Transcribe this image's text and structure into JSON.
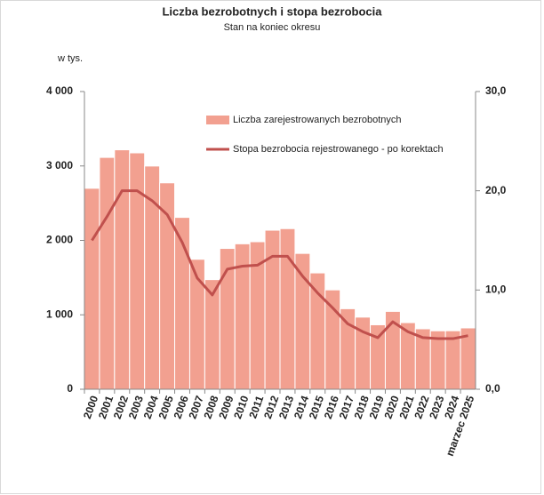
{
  "chart_data": {
    "type": "bar-line",
    "title": "Liczba bezrobotnych i stopa bezrobocia",
    "subtitle": "Stan na koniec okresu",
    "y_axis_label": "w tys.",
    "categories": [
      "2000",
      "2001",
      "2002",
      "2003",
      "2004",
      "2005",
      "2006",
      "2007",
      "2008",
      "2009",
      "2010",
      "2011",
      "2012",
      "2013",
      "2014",
      "2015",
      "2016",
      "2017",
      "2018",
      "2019",
      "2020",
      "2021",
      "2022",
      "2023",
      "2024",
      "marzec 2025"
    ],
    "series": [
      {
        "name": "Liczba zarejestrowanych bezrobotnych",
        "type": "bar",
        "color": "#f2a090",
        "values": [
          2700,
          3115,
          3217,
          3176,
          2999,
          2773,
          2309,
          1746,
          1473,
          1892,
          1954,
          1982,
          2137,
          2158,
          1825,
          1563,
          1335,
          1082,
          969,
          866,
          1046,
          895,
          812,
          785,
          786,
          824
        ]
      },
      {
        "name": "Stopa bezrobocia rejestrowanego - po korektach",
        "type": "line",
        "axis": "y2",
        "color": "#c0504d",
        "values": [
          15.0,
          17.4,
          20.0,
          20.0,
          19.0,
          17.6,
          14.8,
          11.2,
          9.5,
          12.1,
          12.4,
          12.5,
          13.4,
          13.4,
          11.4,
          9.7,
          8.2,
          6.6,
          5.8,
          5.2,
          6.8,
          5.8,
          5.2,
          5.1,
          5.1,
          5.4
        ]
      }
    ],
    "ylim": [
      0,
      4000
    ],
    "yticks": [
      {
        "value": 0,
        "label": "0"
      },
      {
        "value": 1000,
        "label": "1 000"
      },
      {
        "value": 2000,
        "label": "2 000"
      },
      {
        "value": 3000,
        "label": "3 000"
      },
      {
        "value": 4000,
        "label": "4 000"
      }
    ],
    "y2lim": [
      0,
      30
    ],
    "y2ticks": [
      {
        "value": 0,
        "label": "0,0"
      },
      {
        "value": 10,
        "label": "10,0"
      },
      {
        "value": 20,
        "label": "20,0"
      },
      {
        "value": 30,
        "label": "30,0"
      }
    ]
  }
}
